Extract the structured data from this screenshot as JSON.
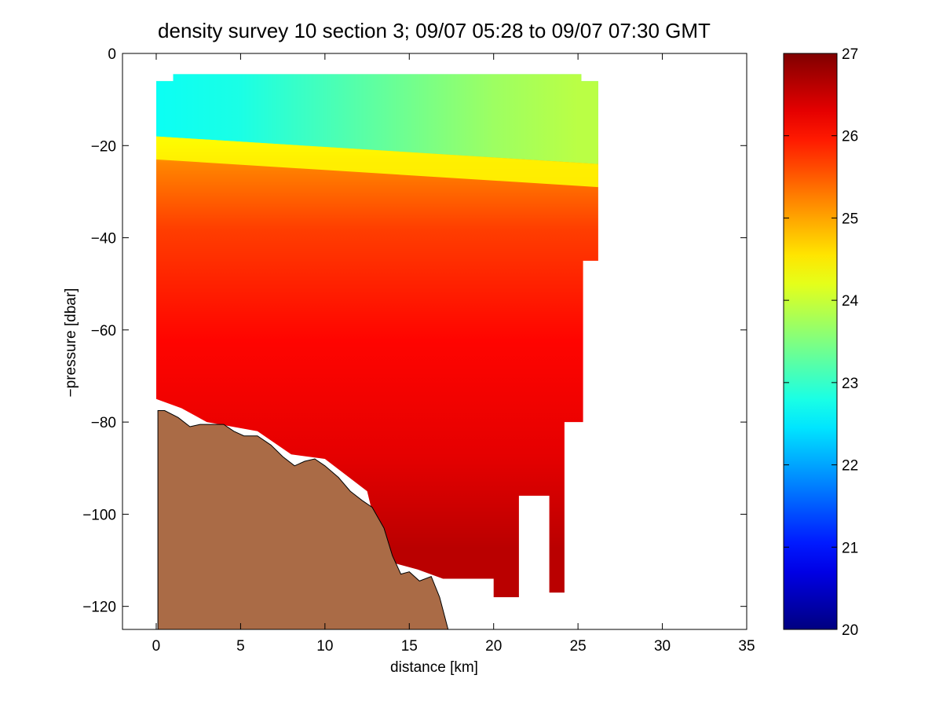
{
  "chart_data": {
    "type": "heatmap",
    "title": "density survey 10 section 3; 09/07 05:28 to 09/07 07:30 GMT",
    "xlabel": "distance [km]",
    "ylabel": "−pressure [dbar]",
    "xlim": [
      -2,
      35
    ],
    "ylim": [
      -125,
      0
    ],
    "xticks": [
      0,
      5,
      10,
      15,
      20,
      25,
      30,
      35
    ],
    "yticks": [
      0,
      -20,
      -40,
      -60,
      -80,
      -100,
      -120
    ],
    "xtick_labels": [
      "0",
      "5",
      "10",
      "15",
      "20",
      "25",
      "30",
      "35"
    ],
    "ytick_labels": [
      "0",
      "−20",
      "−40",
      "−60",
      "−80",
      "−100",
      "−120"
    ],
    "grid": false,
    "colorbar": {
      "colormap": "jet",
      "clim": [
        20,
        27
      ],
      "ticks": [
        20,
        21,
        22,
        23,
        24,
        25,
        26,
        27
      ],
      "tick_labels": [
        "20",
        "21",
        "22",
        "23",
        "24",
        "25",
        "26",
        "27"
      ]
    },
    "field": {
      "description_units": "density",
      "layers": [
        {
          "depth_range": [
            -5,
            -18
          ],
          "value": 23.2
        },
        {
          "depth_range": [
            -18,
            -21
          ],
          "value": 24.3
        },
        {
          "depth_range": [
            -21,
            -27
          ],
          "value": 25.2
        },
        {
          "depth_range": [
            -27,
            -50
          ],
          "value": 25.7
        },
        {
          "depth_range": [
            -50,
            -75
          ],
          "value": 26.1
        },
        {
          "depth_range": [
            -75,
            -100
          ],
          "value": 26.3
        },
        {
          "depth_range": [
            -100,
            -115
          ],
          "value": 26.6
        }
      ],
      "surface_gradient": {
        "x": [
          0,
          5,
          10,
          15,
          20,
          25
        ],
        "value": [
          22.7,
          22.8,
          23.1,
          23.4,
          23.7,
          23.9
        ]
      },
      "data_region_x": [
        0,
        26.2
      ],
      "data_region_depth": [
        -5,
        -118
      ]
    },
    "bathymetry": {
      "color": "#aa6b46",
      "x": [
        0.1,
        0.5,
        1.3,
        2.0,
        2.6,
        3.2,
        4.0,
        4.6,
        5.2,
        6.0,
        6.8,
        7.5,
        8.2,
        8.8,
        9.4,
        10.0,
        10.8,
        11.5,
        12.2,
        12.8,
        13.5,
        14.0,
        14.5,
        15.0,
        15.6,
        16.3,
        16.8,
        17.3
      ],
      "depth": [
        -77.5,
        -77.5,
        -79,
        -81,
        -80.5,
        -80.5,
        -80.5,
        -82,
        -83,
        -83,
        -85,
        -87.5,
        -89.5,
        -88.5,
        -88,
        -89.5,
        -92,
        -95,
        -97,
        -98.5,
        -103,
        -109,
        -113,
        -112.5,
        -114.5,
        -113.5,
        -118,
        -125
      ]
    }
  }
}
